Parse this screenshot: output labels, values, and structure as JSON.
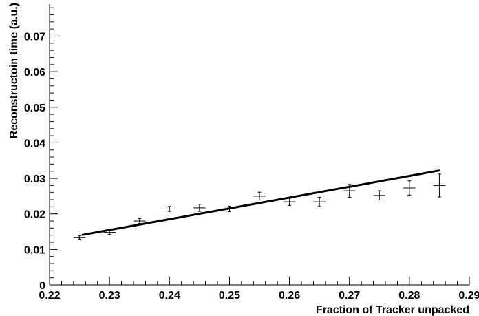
{
  "chart_data": {
    "type": "scatter",
    "title": "",
    "xlabel": "Fraction of Tracker unpacked",
    "ylabel": "Reconstructoin time (a.u.)",
    "xlim": [
      0.22,
      0.29
    ],
    "ylim": [
      0,
      0.079
    ],
    "grid": false,
    "x_ticks": [
      "0.22",
      "0.23",
      "0.24",
      "0.25",
      "0.26",
      "0.27",
      "0.28",
      "0.29"
    ],
    "y_ticks": [
      "0",
      "0.01",
      "0.02",
      "0.03",
      "0.04",
      "0.05",
      "0.06",
      "0.07"
    ],
    "series": [
      {
        "kind": "points_with_error_bars",
        "x_error": 0.001,
        "points": [
          {
            "x": 0.225,
            "y": 0.0134,
            "err": 0.0005
          },
          {
            "x": 0.23,
            "y": 0.0148,
            "err": 0.0006
          },
          {
            "x": 0.235,
            "y": 0.018,
            "err": 0.0007
          },
          {
            "x": 0.24,
            "y": 0.0214,
            "err": 0.0007
          },
          {
            "x": 0.245,
            "y": 0.0217,
            "err": 0.001
          },
          {
            "x": 0.25,
            "y": 0.0214,
            "err": 0.0008
          },
          {
            "x": 0.255,
            "y": 0.025,
            "err": 0.0011
          },
          {
            "x": 0.26,
            "y": 0.0234,
            "err": 0.001
          },
          {
            "x": 0.265,
            "y": 0.0234,
            "err": 0.0013
          },
          {
            "x": 0.27,
            "y": 0.0265,
            "err": 0.0018
          },
          {
            "x": 0.275,
            "y": 0.0252,
            "err": 0.0013
          },
          {
            "x": 0.28,
            "y": 0.0273,
            "err": 0.002
          },
          {
            "x": 0.285,
            "y": 0.028,
            "err": 0.0032
          }
        ]
      },
      {
        "kind": "fit_line",
        "x": [
          0.2255,
          0.285
        ],
        "y": [
          0.0141,
          0.0322
        ]
      }
    ]
  }
}
